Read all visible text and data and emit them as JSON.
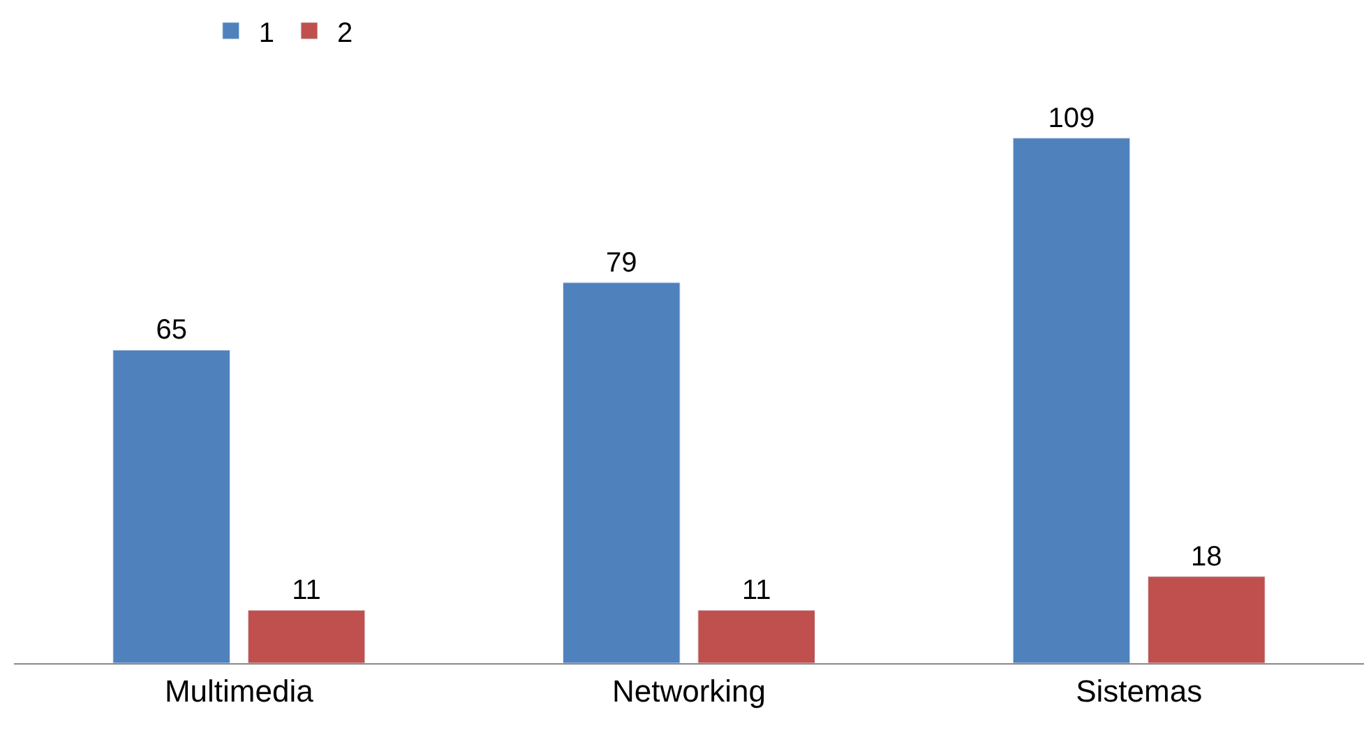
{
  "chart_data": {
    "type": "bar",
    "categories": [
      "Multimedia",
      "Networking",
      "Sistemas"
    ],
    "series": [
      {
        "name": "1",
        "color": "#4f81bd",
        "values": [
          65,
          79,
          109
        ]
      },
      {
        "name": "2",
        "color": "#c0504d",
        "values": [
          11,
          11,
          18
        ]
      }
    ],
    "data_labels": true,
    "legend": "top left"
  }
}
